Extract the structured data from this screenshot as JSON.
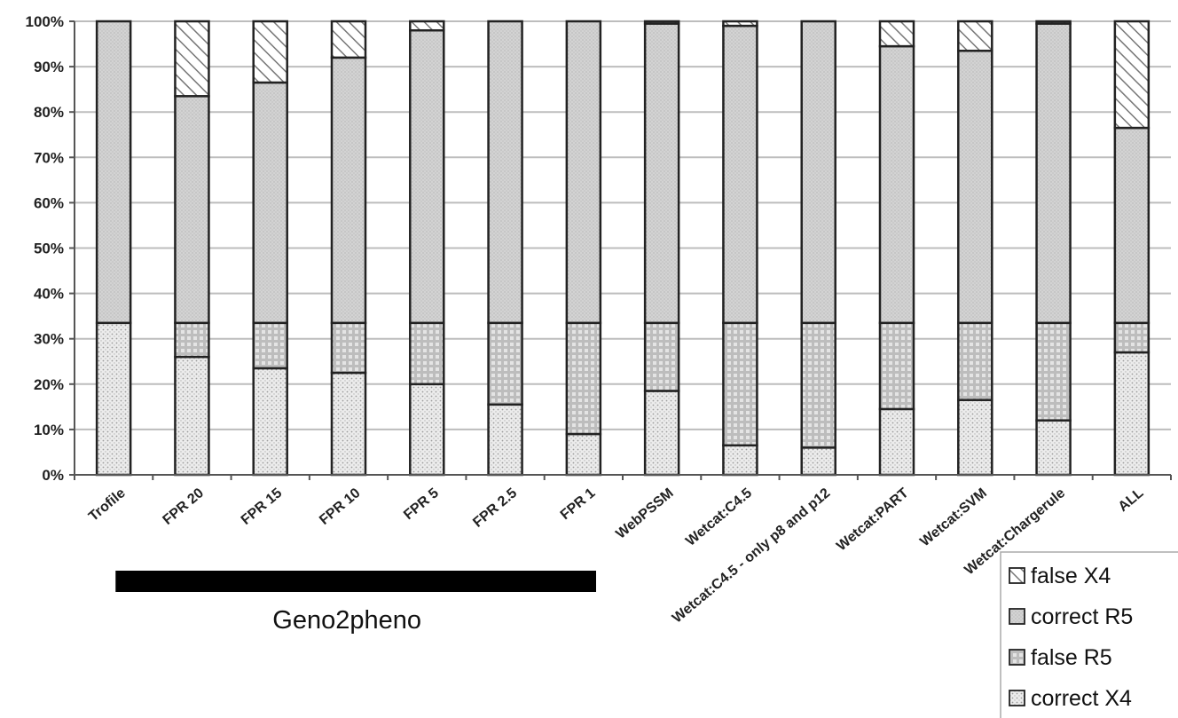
{
  "chart_data": {
    "type": "bar",
    "stacked": true,
    "percent": true,
    "categories": [
      "Trofile",
      "FPR 20",
      "FPR 15",
      "FPR 10",
      "FPR 5",
      "FPR 2.5",
      "FPR 1",
      "WebPSSM",
      "Wetcat:C4.5",
      "Wetcat:C4.5 - only p8 and p12",
      "Wetcat:PART",
      "Wetcat:SVM",
      "Wetcat:Chargerule",
      "ALL"
    ],
    "series": [
      {
        "name": "correct X4",
        "pattern": "dots",
        "values": [
          33.5,
          26,
          23.5,
          22.5,
          20,
          15.5,
          9,
          18.5,
          6.5,
          6,
          14.5,
          16.5,
          12,
          27
        ]
      },
      {
        "name": "false R5",
        "pattern": "grid",
        "values": [
          0,
          7.5,
          10,
          11,
          13.5,
          18,
          24.5,
          15,
          27,
          27.5,
          19,
          17,
          21.5,
          6.5
        ]
      },
      {
        "name": "correct R5",
        "pattern": "stipple",
        "values": [
          66.5,
          50,
          53,
          58.5,
          64.5,
          66.5,
          66.5,
          66,
          65.5,
          66.5,
          61,
          60,
          66,
          43
        ]
      },
      {
        "name": "false X4",
        "pattern": "hatch",
        "values": [
          0,
          16.5,
          13.5,
          8,
          2,
          0,
          0,
          0.5,
          1,
          0,
          5.5,
          6.5,
          0.5,
          23.5
        ]
      }
    ],
    "y_ticks": [
      "0%",
      "10%",
      "20%",
      "30%",
      "40%",
      "50%",
      "60%",
      "70%",
      "80%",
      "90%",
      "100%"
    ],
    "ylim": [
      0,
      100
    ],
    "grid": true,
    "legend_entries": [
      "false X4",
      "correct R5",
      "false R5",
      "correct X4"
    ],
    "legend_placement": "bottom-right",
    "group_label": "Geno2pheno",
    "group_categories": [
      "FPR 20",
      "FPR 15",
      "FPR 10",
      "FPR 5",
      "FPR 2.5",
      "FPR 1"
    ],
    "colors": {
      "bar_outline": "#222222",
      "axis": "#555555",
      "grid": "#bdbdbd",
      "group_bar": "#000000"
    }
  }
}
